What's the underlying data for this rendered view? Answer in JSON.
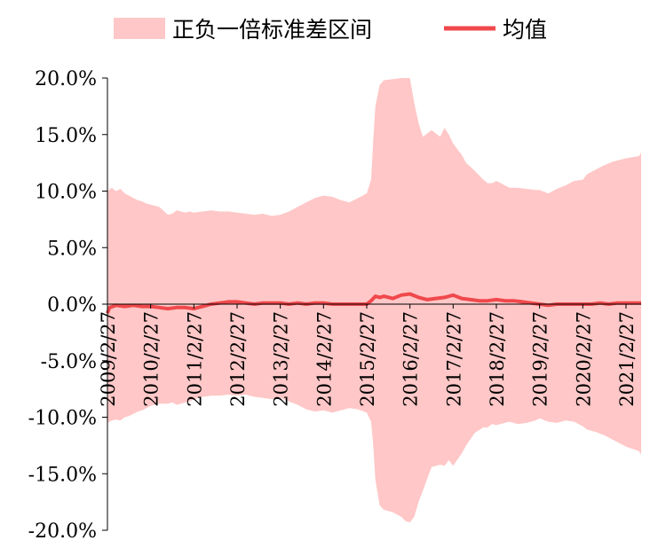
{
  "chart_data": {
    "type": "area",
    "title": "",
    "xlabel": "",
    "ylabel": "",
    "ylim": [
      -20,
      20
    ],
    "grid": false,
    "legend_placement": "top",
    "y_ticks": [
      "20.0%",
      "15.0%",
      "10.0%",
      "5.0%",
      "0.0%",
      "-5.0%",
      "-10.0%",
      "-15.0%",
      "-20.0%"
    ],
    "y_tick_values": [
      20,
      15,
      10,
      5,
      0,
      -5,
      -10,
      -15,
      -20
    ],
    "x_tick_labels": [
      "2009/2/27",
      "2010/2/27",
      "2011/2/27",
      "2012/2/27",
      "2013/2/27",
      "2014/2/27",
      "2015/2/27",
      "2016/2/27",
      "2017/2/27",
      "2018/2/27",
      "2019/2/27",
      "2020/2/27",
      "2021/2/27"
    ],
    "x_range": [
      2009.0,
      2021.35
    ],
    "colors": {
      "band": "#ffc7c7",
      "mean": "#f0484c",
      "axis": "#000000"
    },
    "series": [
      {
        "name": "正负一倍标准差区间",
        "kind": "band",
        "x": [
          2009.0,
          2009.1,
          2009.2,
          2009.3,
          2009.4,
          2009.5,
          2009.6,
          2009.7,
          2009.8,
          2009.9,
          2010.0,
          2010.2,
          2010.4,
          2010.5,
          2010.6,
          2010.7,
          2010.8,
          2010.9,
          2011.0,
          2011.2,
          2011.4,
          2011.6,
          2011.8,
          2012.0,
          2012.2,
          2012.4,
          2012.6,
          2012.8,
          2013.0,
          2013.2,
          2013.4,
          2013.6,
          2013.8,
          2014.0,
          2014.2,
          2014.4,
          2014.6,
          2014.8,
          2015.0,
          2015.1,
          2015.15,
          2015.2,
          2015.3,
          2015.4,
          2015.6,
          2015.8,
          2015.9,
          2016.0,
          2016.1,
          2016.2,
          2016.3,
          2016.5,
          2016.7,
          2016.8,
          2016.9,
          2017.0,
          2017.2,
          2017.3,
          2017.5,
          2017.7,
          2017.8,
          2017.9,
          2018.0,
          2018.2,
          2018.3,
          2018.5,
          2018.7,
          2018.9,
          2019.0,
          2019.2,
          2019.4,
          2019.6,
          2019.8,
          2020.0,
          2020.1,
          2020.3,
          2020.5,
          2020.7,
          2020.9,
          2021.0,
          2021.15,
          2021.3,
          2021.35
        ],
        "upper": [
          10.0,
          10.3,
          10.0,
          10.2,
          9.8,
          9.6,
          9.4,
          9.2,
          9.1,
          8.9,
          8.8,
          8.6,
          7.9,
          8.0,
          8.3,
          8.2,
          8.1,
          8.2,
          8.1,
          8.2,
          8.3,
          8.2,
          8.2,
          8.1,
          8.0,
          7.9,
          8.0,
          7.8,
          7.9,
          8.2,
          8.6,
          9.0,
          9.4,
          9.6,
          9.5,
          9.2,
          9.0,
          9.4,
          9.8,
          11.0,
          14.5,
          17.5,
          19.4,
          19.8,
          19.9,
          20.0,
          20.0,
          20.0,
          17.8,
          16.0,
          14.8,
          15.4,
          14.8,
          15.6,
          15.0,
          14.2,
          13.2,
          12.5,
          11.8,
          11.0,
          10.7,
          10.7,
          10.9,
          10.5,
          10.3,
          10.3,
          10.2,
          10.1,
          10.1,
          9.8,
          10.2,
          10.5,
          10.9,
          11.0,
          11.5,
          11.9,
          12.3,
          12.6,
          12.8,
          12.9,
          13.0,
          13.1,
          13.4
        ],
        "lower": [
          -10.5,
          -10.3,
          -10.2,
          -10.3,
          -10.0,
          -9.9,
          -9.7,
          -9.5,
          -9.4,
          -9.2,
          -9.0,
          -8.8,
          -8.8,
          -8.7,
          -8.9,
          -8.8,
          -8.7,
          -8.6,
          -8.4,
          -8.2,
          -8.1,
          -8.1,
          -8.0,
          -8.1,
          -8.0,
          -8.2,
          -8.3,
          -8.4,
          -8.3,
          -8.6,
          -8.9,
          -9.3,
          -9.5,
          -9.4,
          -9.6,
          -9.4,
          -9.2,
          -9.3,
          -9.6,
          -10.4,
          -12.5,
          -15.5,
          -17.8,
          -18.2,
          -18.4,
          -18.8,
          -19.2,
          -19.3,
          -18.8,
          -17.5,
          -16.5,
          -14.4,
          -14.2,
          -14.3,
          -13.8,
          -14.3,
          -13.2,
          -12.5,
          -11.4,
          -10.9,
          -10.9,
          -10.6,
          -10.7,
          -10.5,
          -10.4,
          -10.6,
          -10.5,
          -10.3,
          -10.1,
          -10.4,
          -10.5,
          -10.3,
          -10.4,
          -10.8,
          -11.1,
          -11.3,
          -11.6,
          -12.0,
          -12.4,
          -12.6,
          -12.8,
          -13.0,
          -13.3
        ]
      },
      {
        "name": "均值",
        "kind": "line",
        "x": [
          2009.0,
          2009.05,
          2009.2,
          2009.4,
          2009.6,
          2009.8,
          2010.0,
          2010.2,
          2010.4,
          2010.6,
          2010.8,
          2011.0,
          2011.2,
          2011.4,
          2011.6,
          2011.8,
          2012.0,
          2012.2,
          2012.4,
          2012.6,
          2012.8,
          2013.0,
          2013.2,
          2013.4,
          2013.6,
          2013.8,
          2014.0,
          2014.2,
          2014.4,
          2014.6,
          2014.8,
          2015.0,
          2015.1,
          2015.2,
          2015.3,
          2015.4,
          2015.6,
          2015.8,
          2016.0,
          2016.2,
          2016.4,
          2016.6,
          2016.8,
          2017.0,
          2017.2,
          2017.4,
          2017.6,
          2017.8,
          2018.0,
          2018.2,
          2018.4,
          2018.6,
          2018.8,
          2019.0,
          2019.2,
          2019.4,
          2019.6,
          2019.8,
          2020.0,
          2020.2,
          2020.4,
          2020.6,
          2020.8,
          2021.0,
          2021.2,
          2021.35
        ],
        "y": [
          -0.8,
          -0.3,
          -0.1,
          -0.2,
          -0.1,
          -0.2,
          -0.2,
          -0.3,
          -0.4,
          -0.3,
          -0.3,
          -0.4,
          -0.2,
          0.0,
          0.1,
          0.2,
          0.2,
          0.1,
          0.0,
          0.1,
          0.1,
          0.1,
          0.0,
          0.1,
          0.0,
          0.1,
          0.1,
          0.0,
          0.0,
          0.0,
          0.0,
          0.0,
          0.3,
          0.7,
          0.6,
          0.7,
          0.5,
          0.8,
          0.9,
          0.6,
          0.4,
          0.5,
          0.6,
          0.8,
          0.5,
          0.4,
          0.3,
          0.3,
          0.4,
          0.3,
          0.3,
          0.2,
          0.1,
          0.0,
          -0.1,
          0.0,
          0.0,
          0.0,
          0.0,
          0.0,
          0.1,
          0.0,
          0.1,
          0.1,
          0.1,
          0.1
        ]
      }
    ]
  }
}
